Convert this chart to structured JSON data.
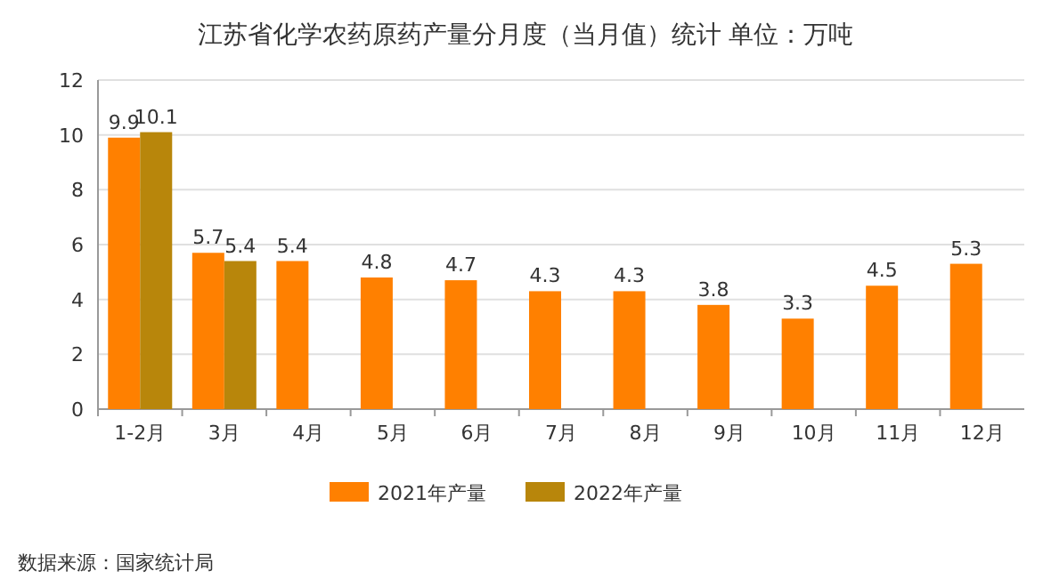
{
  "chart_data": {
    "type": "bar",
    "title": "江苏省化学农药原药产量分月度（当月值）统计  单位：万吨",
    "categories": [
      "1-2月",
      "3月",
      "4月",
      "5月",
      "6月",
      "7月",
      "8月",
      "9月",
      "10月",
      "11月",
      "12月"
    ],
    "series": [
      {
        "name": "2021年产量",
        "color": "#ff8000",
        "values": [
          9.9,
          5.7,
          5.4,
          4.8,
          4.7,
          4.3,
          4.3,
          3.8,
          3.3,
          4.5,
          5.3
        ]
      },
      {
        "name": "2022年产量",
        "color": "#b8860b",
        "values": [
          10.1,
          5.4,
          null,
          null,
          null,
          null,
          null,
          null,
          null,
          null,
          null
        ]
      }
    ],
    "ylim": [
      0,
      12
    ],
    "yticks": [
      0,
      2,
      4,
      6,
      8,
      10,
      12
    ],
    "grid": "y",
    "legend": "bottom",
    "data_labels": true,
    "annotations": [
      "数据来源：国家统计局"
    ]
  }
}
